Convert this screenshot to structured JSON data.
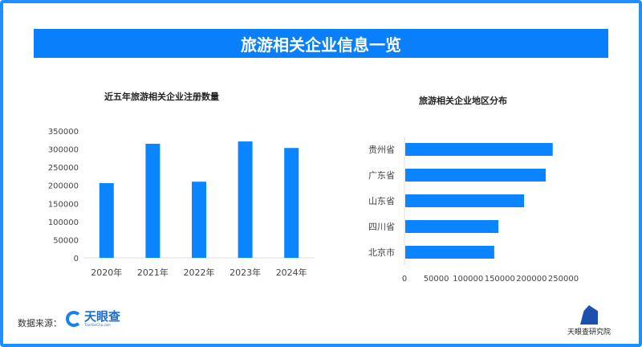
{
  "header": {
    "title": "旅游相关企业信息一览"
  },
  "chart_data": [
    {
      "type": "bar",
      "title": "近五年旅游相关企业注册数量",
      "categories": [
        "2020年",
        "2021年",
        "2022年",
        "2023年",
        "2024年"
      ],
      "values": [
        206000,
        314500,
        210000,
        321000,
        303000
      ],
      "ylim": [
        0,
        350000
      ],
      "yticks": [
        "0",
        "50000",
        "100000",
        "150000",
        "200000",
        "250000",
        "300000",
        "350000"
      ],
      "color": "#0a84ff",
      "grid": false
    },
    {
      "type": "bar",
      "orientation": "horizontal",
      "title": "旅游相关企业地区分布",
      "categories": [
        "贵州省",
        "广东省",
        "山东省",
        "四川省",
        "北京市"
      ],
      "values": [
        232000,
        221000,
        187000,
        146500,
        140000
      ],
      "xlim": [
        0,
        250000
      ],
      "xticks": [
        "0",
        "50000",
        "100000",
        "150000",
        "200000",
        "250000"
      ],
      "color": "#0a84ff",
      "grid": false
    }
  ],
  "footer": {
    "source_label": "数据来源：",
    "logo_name": "天眼查",
    "logo_sub": "TianYanCha.com",
    "institute": "天眼查研究院"
  }
}
